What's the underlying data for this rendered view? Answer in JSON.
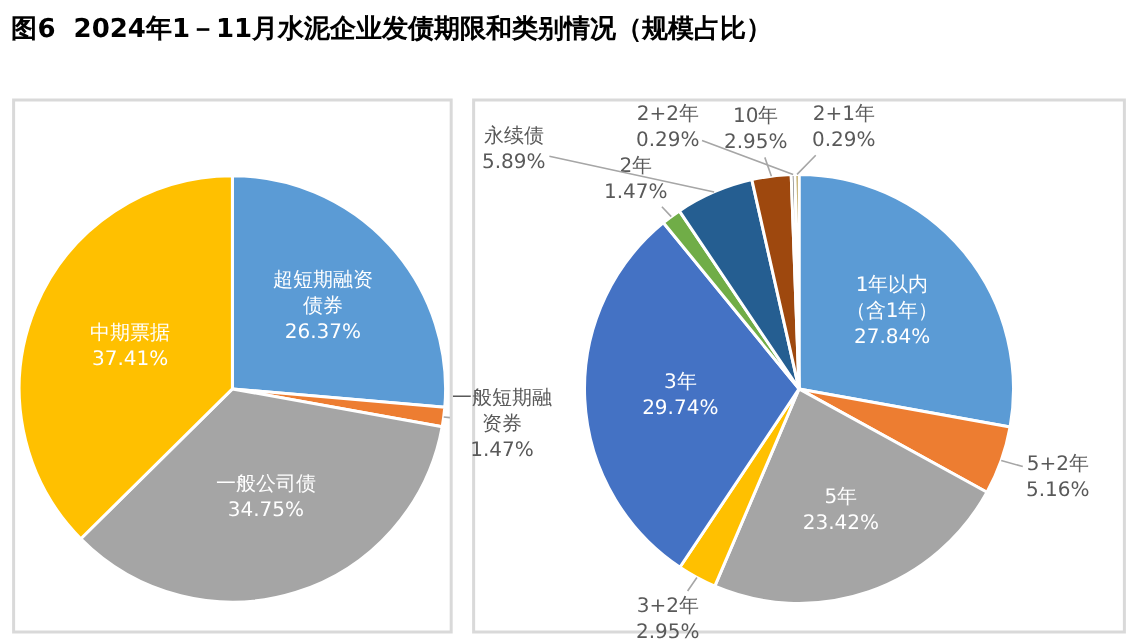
{
  "chart_data": [
    {
      "type": "pie",
      "title": "图6  2024年1－11月水泥企业发债期限和类别情况（规模占比）",
      "legend": false,
      "data_labels": true,
      "categories": [
        "超短期融资债券",
        "一般短期融资券",
        "一般公司债",
        "中期票据"
      ],
      "values": [
        26.37,
        1.47,
        34.75,
        37.41
      ],
      "value_labels": [
        "26.37%",
        "1.47%",
        "34.75%",
        "37.41%"
      ],
      "colors": [
        "#5b9bd5",
        "#ed7d31",
        "#a5a5a5",
        "#ffc000"
      ]
    },
    {
      "type": "pie",
      "legend": false,
      "data_labels": true,
      "categories": [
        "1年以内（含1年）",
        "5+2年",
        "5年",
        "3+2年",
        "3年",
        "2年",
        "永续债",
        "10年",
        "2+2年",
        "2+1年"
      ],
      "values": [
        27.84,
        5.16,
        23.42,
        2.95,
        29.74,
        1.47,
        5.89,
        2.95,
        0.29,
        0.29
      ],
      "value_labels": [
        "27.84%",
        "5.16%",
        "23.42%",
        "2.95%",
        "29.74%",
        "1.47%",
        "5.89%",
        "2.95%",
        "0.29%",
        "0.29%"
      ],
      "colors": [
        "#5b9bd5",
        "#ed7d31",
        "#a5a5a5",
        "#ffc000",
        "#4472c4",
        "#70ad47",
        "#255e91",
        "#9e480e",
        "#636363",
        "#997300"
      ]
    }
  ]
}
